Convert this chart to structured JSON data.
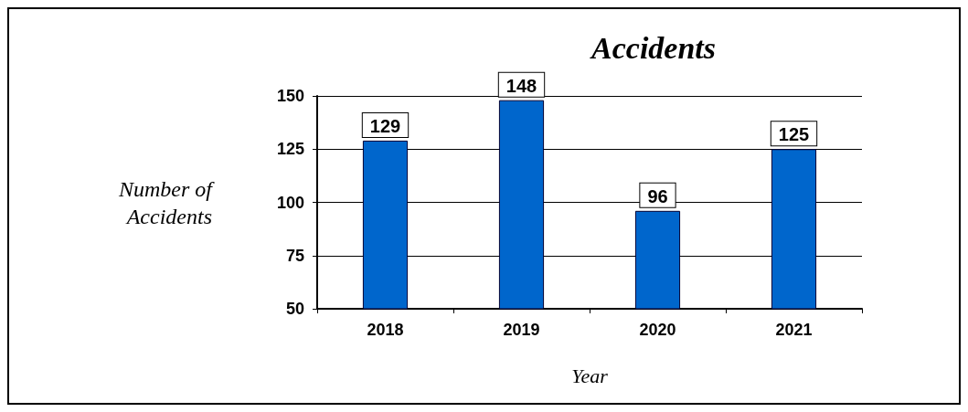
{
  "chart_data": {
    "type": "bar",
    "title": "Accidents",
    "xlabel": "Year",
    "ylabel": "Number of Accidents",
    "categories": [
      "2018",
      "2019",
      "2020",
      "2021"
    ],
    "values": [
      129,
      148,
      96,
      125
    ],
    "color": "#0066cc",
    "ylim": [
      50,
      150
    ],
    "yticks": [
      50,
      75,
      100,
      125,
      150
    ],
    "grid": "y",
    "data_labels": true
  }
}
